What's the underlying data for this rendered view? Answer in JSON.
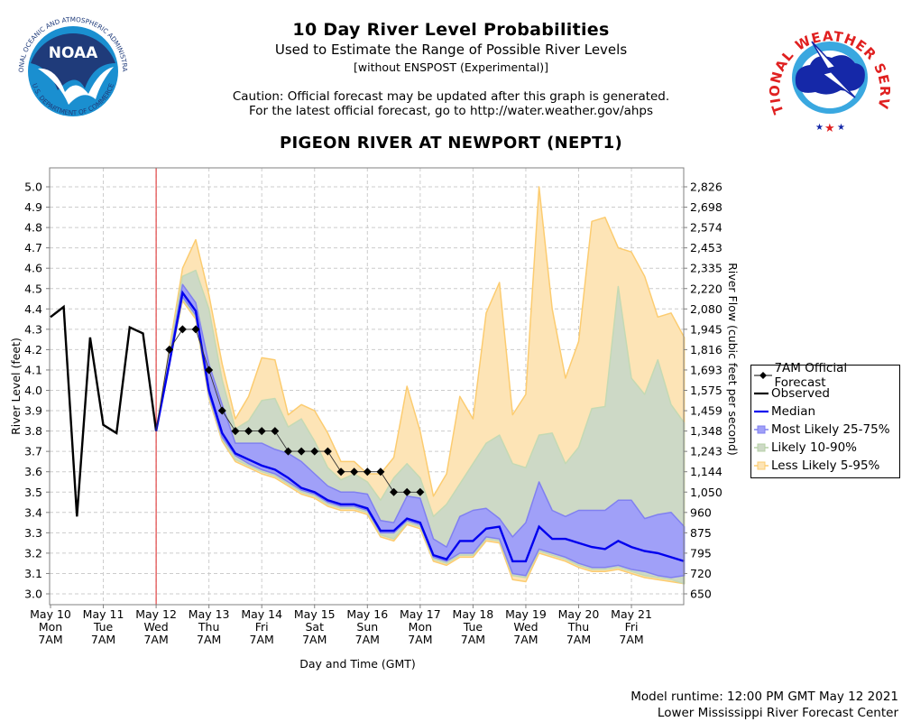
{
  "header": {
    "title": "10 Day River Level Probabilities",
    "subtitle": "Used to Estimate the Range of Possible River Levels",
    "note": "[without ENSPOST (Experimental)]",
    "caution_line1": "Caution: Official forecast may be updated after this graph is generated.",
    "caution_line2": "For the latest official forecast, go to http://water.weather.gov/ahps",
    "station": "PIGEON RIVER AT NEWPORT (NEPT1)"
  },
  "logos": {
    "left": {
      "name": "NOAA",
      "ring_text": "NATIONAL OCEANIC AND ATMOSPHERIC ADMINISTRATION",
      "bottom_text": "U.S. DEPARTMENT OF COMMERCE"
    },
    "right": {
      "name": "NATIONAL WEATHER SERVICE"
    }
  },
  "footer": {
    "runtime": "Model runtime: 12:00 PM GMT May 12 2021",
    "center": "Lower Mississippi River Forecast Center"
  },
  "colors": {
    "observed": "#000000",
    "median": "#0000ee",
    "band_25_75": "#a0a0f8",
    "band_10_90": "#cdd9c6",
    "band_5_95": "#fde4b6",
    "band_5_95_edge": "#fccc70",
    "band_10_90_edge": "#c4d9b4",
    "band_25_75_edge": "#8080f0",
    "now_line": "#dd2222",
    "grid": "#cccccc"
  },
  "chart_data": {
    "type": "area",
    "title": "PIGEON RIVER AT NEWPORT (NEPT1)",
    "xlabel": "Day and Time (GMT)",
    "ylabel": "River Level (feet)",
    "ylabel_right": "River Flow (cubic feet per second)",
    "ylim": [
      2.94,
      5.09
    ],
    "x_unit": "hours since May 10 7AM GMT",
    "xlim": [
      -2,
      266
    ],
    "grid": true,
    "legend_position": "right",
    "now_marker_hours": 48,
    "x_ticks": [
      {
        "hours": 0,
        "date": "May 10",
        "day": "Mon",
        "time": "7AM"
      },
      {
        "hours": 24,
        "date": "May 11",
        "day": "Tue",
        "time": "7AM"
      },
      {
        "hours": 48,
        "date": "May 12",
        "day": "Wed",
        "time": "7AM"
      },
      {
        "hours": 72,
        "date": "May 13",
        "day": "Thu",
        "time": "7AM"
      },
      {
        "hours": 96,
        "date": "May 14",
        "day": "Fri",
        "time": "7AM"
      },
      {
        "hours": 120,
        "date": "May 15",
        "day": "Sat",
        "time": "7AM"
      },
      {
        "hours": 144,
        "date": "May 16",
        "day": "Sun",
        "time": "7AM"
      },
      {
        "hours": 168,
        "date": "May 17",
        "day": "Mon",
        "time": "7AM"
      },
      {
        "hours": 192,
        "date": "May 18",
        "day": "Tue",
        "time": "7AM"
      },
      {
        "hours": 216,
        "date": "May 19",
        "day": "Wed",
        "time": "7AM"
      },
      {
        "hours": 240,
        "date": "May 20",
        "day": "Thu",
        "time": "7AM"
      },
      {
        "hours": 264,
        "date": "May 21",
        "day": "Fri",
        "time": "7AM"
      }
    ],
    "y_ticks_left": [
      "5.0",
      "4.9",
      "4.8",
      "4.7",
      "4.6",
      "4.5",
      "4.4",
      "4.3",
      "4.2",
      "4.1",
      "4.0",
      "3.9",
      "3.8",
      "3.7",
      "3.6",
      "3.5",
      "3.4",
      "3.3",
      "3.2",
      "3.1",
      "3.0"
    ],
    "y_tick_values": [
      5.0,
      4.9,
      4.8,
      4.7,
      4.6,
      4.5,
      4.4,
      4.3,
      4.2,
      4.1,
      4.0,
      3.9,
      3.8,
      3.7,
      3.6,
      3.5,
      3.4,
      3.3,
      3.2,
      3.1,
      3.0
    ],
    "y_ticks_right": [
      "2,826",
      "2,698",
      "2,574",
      "2,453",
      "2,335",
      "2,220",
      "2,080",
      "1,945",
      "1,816",
      "1,693",
      "1,575",
      "1,459",
      "1,348",
      "1,243",
      "1,144",
      "1,050",
      "960",
      "875",
      "795",
      "720",
      "650"
    ],
    "legend": [
      {
        "key": "official",
        "label": "7AM Official Forecast"
      },
      {
        "key": "observed",
        "label": "Observed"
      },
      {
        "key": "median",
        "label": "Median"
      },
      {
        "key": "p25_75",
        "label": "Most Likely 25-75%"
      },
      {
        "key": "p10_90",
        "label": "Likely 10-90%"
      },
      {
        "key": "p5_95",
        "label": "Less Likely 5-95%"
      }
    ],
    "observed": {
      "hours": [
        0,
        6,
        12,
        18,
        24,
        30,
        36,
        42,
        48
      ],
      "values": [
        4.36,
        4.41,
        3.38,
        4.26,
        3.83,
        3.79,
        4.31,
        4.28,
        3.8
      ]
    },
    "forecast_hours": [
      48,
      54,
      60,
      66,
      72,
      78,
      84,
      90,
      96,
      102,
      108,
      114,
      120,
      126,
      132,
      138,
      144,
      150,
      156,
      162,
      168,
      174,
      180,
      186,
      192,
      198,
      204,
      210,
      216,
      222,
      228,
      234,
      240,
      246,
      252,
      258,
      264,
      270,
      276,
      282,
      288
    ],
    "median": [
      3.8,
      4.13,
      4.48,
      4.39,
      4.0,
      3.79,
      3.69,
      3.66,
      3.63,
      3.61,
      3.57,
      3.52,
      3.5,
      3.46,
      3.44,
      3.44,
      3.42,
      3.31,
      3.31,
      3.37,
      3.35,
      3.19,
      3.17,
      3.26,
      3.26,
      3.32,
      3.33,
      3.16,
      3.16,
      3.33,
      3.27,
      3.27,
      3.25,
      3.23,
      3.22,
      3.26,
      3.23,
      3.21,
      3.2,
      3.18,
      3.16
    ],
    "p25": [
      3.8,
      4.13,
      4.46,
      4.37,
      3.98,
      3.77,
      3.68,
      3.64,
      3.61,
      3.59,
      3.55,
      3.51,
      3.49,
      3.45,
      3.43,
      3.43,
      3.41,
      3.3,
      3.3,
      3.36,
      3.34,
      3.18,
      3.16,
      3.2,
      3.2,
      3.28,
      3.27,
      3.1,
      3.09,
      3.22,
      3.2,
      3.18,
      3.15,
      3.13,
      3.13,
      3.14,
      3.12,
      3.11,
      3.09,
      3.08,
      3.09
    ],
    "p75": [
      3.8,
      4.15,
      4.52,
      4.43,
      4.13,
      3.93,
      3.74,
      3.74,
      3.74,
      3.71,
      3.69,
      3.65,
      3.59,
      3.53,
      3.5,
      3.5,
      3.49,
      3.36,
      3.35,
      3.48,
      3.47,
      3.27,
      3.23,
      3.38,
      3.41,
      3.42,
      3.37,
      3.28,
      3.35,
      3.55,
      3.41,
      3.38,
      3.41,
      3.41,
      3.41,
      3.46,
      3.46,
      3.37,
      3.39,
      3.4,
      3.33
    ],
    "p10": [
      3.8,
      4.13,
      4.45,
      4.36,
      3.97,
      3.76,
      3.66,
      3.63,
      3.6,
      3.58,
      3.54,
      3.5,
      3.48,
      3.44,
      3.42,
      3.42,
      3.4,
      3.29,
      3.27,
      3.35,
      3.33,
      3.17,
      3.15,
      3.19,
      3.19,
      3.27,
      3.26,
      3.09,
      3.08,
      3.21,
      3.19,
      3.17,
      3.14,
      3.12,
      3.12,
      3.13,
      3.11,
      3.09,
      3.08,
      3.07,
      3.05
    ],
    "p90": [
      3.8,
      4.18,
      4.56,
      4.59,
      4.4,
      4.05,
      3.81,
      3.85,
      3.95,
      3.96,
      3.82,
      3.86,
      3.75,
      3.62,
      3.56,
      3.59,
      3.55,
      3.46,
      3.57,
      3.64,
      3.57,
      3.38,
      3.44,
      3.54,
      3.64,
      3.74,
      3.78,
      3.64,
      3.62,
      3.78,
      3.79,
      3.64,
      3.72,
      3.91,
      3.92,
      4.51,
      4.06,
      3.98,
      4.15,
      3.93,
      3.84
    ],
    "p5": [
      3.8,
      4.13,
      4.44,
      4.35,
      3.96,
      3.75,
      3.65,
      3.62,
      3.59,
      3.57,
      3.53,
      3.49,
      3.47,
      3.43,
      3.41,
      3.41,
      3.39,
      3.28,
      3.26,
      3.34,
      3.32,
      3.16,
      3.14,
      3.18,
      3.18,
      3.26,
      3.25,
      3.07,
      3.06,
      3.2,
      3.18,
      3.16,
      3.13,
      3.11,
      3.11,
      3.12,
      3.1,
      3.08,
      3.07,
      3.06,
      3.05
    ],
    "p95": [
      3.8,
      4.2,
      4.6,
      4.74,
      4.47,
      4.13,
      3.86,
      3.97,
      4.16,
      4.15,
      3.88,
      3.93,
      3.9,
      3.79,
      3.65,
      3.65,
      3.59,
      3.59,
      3.67,
      4.02,
      3.8,
      3.48,
      3.59,
      3.97,
      3.86,
      4.38,
      4.53,
      3.88,
      3.98,
      5.0,
      4.4,
      4.06,
      4.24,
      4.83,
      4.85,
      4.7,
      4.68,
      4.56,
      4.36,
      4.38,
      4.26
    ],
    "official": {
      "hours": [
        48,
        54,
        60,
        66,
        72,
        78,
        84,
        90,
        96,
        102,
        108,
        114,
        120,
        126,
        132,
        138,
        144,
        150,
        156,
        162,
        168
      ],
      "values": [
        3.8,
        4.2,
        4.3,
        4.3,
        4.1,
        3.9,
        3.8,
        3.8,
        3.8,
        3.8,
        3.7,
        3.7,
        3.7,
        3.7,
        3.6,
        3.6,
        3.6,
        3.6,
        3.5,
        3.5,
        3.5
      ],
      "marked_from_index": 1
    }
  }
}
